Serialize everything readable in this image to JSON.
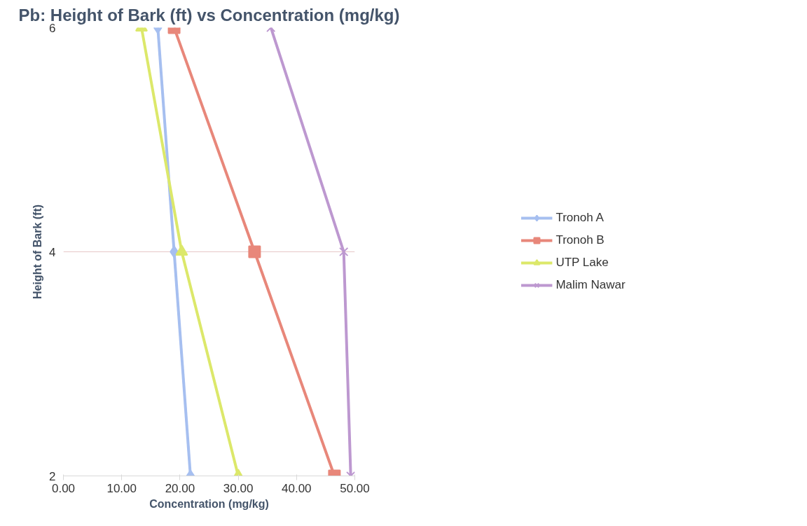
{
  "chart_data": {
    "type": "line",
    "title": "Pb: Height of Bark (ft) vs Concentration (mg/kg)",
    "xlabel": "Concentration (mg/kg)",
    "ylabel": "Height of Bark (ft)",
    "xlim": [
      0,
      50
    ],
    "ylim": [
      2,
      6
    ],
    "xticks": [
      {
        "value": 0,
        "label": "0.00"
      },
      {
        "value": 10,
        "label": "10.00"
      },
      {
        "value": 20,
        "label": "20.00"
      },
      {
        "value": 30,
        "label": "30.00"
      },
      {
        "value": 40,
        "label": "40.00"
      },
      {
        "value": 50,
        "label": "50.00"
      }
    ],
    "yticks": [
      2,
      4,
      6
    ],
    "grid": "y",
    "legend": "right",
    "series": [
      {
        "name": "Tronoh A",
        "color": "#a6bff0",
        "marker": "diamond",
        "x": [
          16.2,
          19.0,
          21.8
        ],
        "values": [
          6,
          4,
          2
        ]
      },
      {
        "name": "Tronoh B",
        "color": "#e8877a",
        "marker": "square",
        "x": [
          19.0,
          32.8,
          46.5
        ],
        "values": [
          6,
          4,
          2
        ]
      },
      {
        "name": "UTP Lake",
        "color": "#dce86a",
        "marker": "triangle",
        "x": [
          13.4,
          20.3,
          30.0
        ],
        "values": [
          6,
          4,
          2
        ]
      },
      {
        "name": "Malim Nawar",
        "color": "#bd98d0",
        "marker": "cross",
        "x": [
          35.6,
          48.1,
          49.3
        ],
        "values": [
          6,
          4,
          2
        ]
      }
    ]
  }
}
